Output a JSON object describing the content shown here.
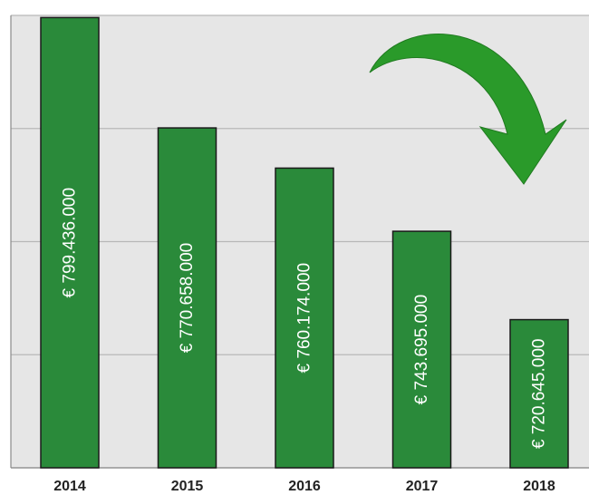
{
  "chart_data": {
    "type": "bar",
    "categories": [
      "2014",
      "2015",
      "2016",
      "2017",
      "2018"
    ],
    "values": [
      799436000,
      770658000,
      760174000,
      743695000,
      720645000
    ],
    "data_labels": [
      "€ 799.436.000",
      "€ 770.658.000",
      "€ 760.174.000",
      "€ 743.695.000",
      "€ 720.645.000"
    ],
    "ylim": [
      682000000,
      800000000
    ],
    "grid": true,
    "bar_color": "#2a8a3a",
    "plot_background": "#e6e6e6",
    "arrow_color": "#2a9a2a",
    "decoration": "curved-down-arrow-icon"
  }
}
